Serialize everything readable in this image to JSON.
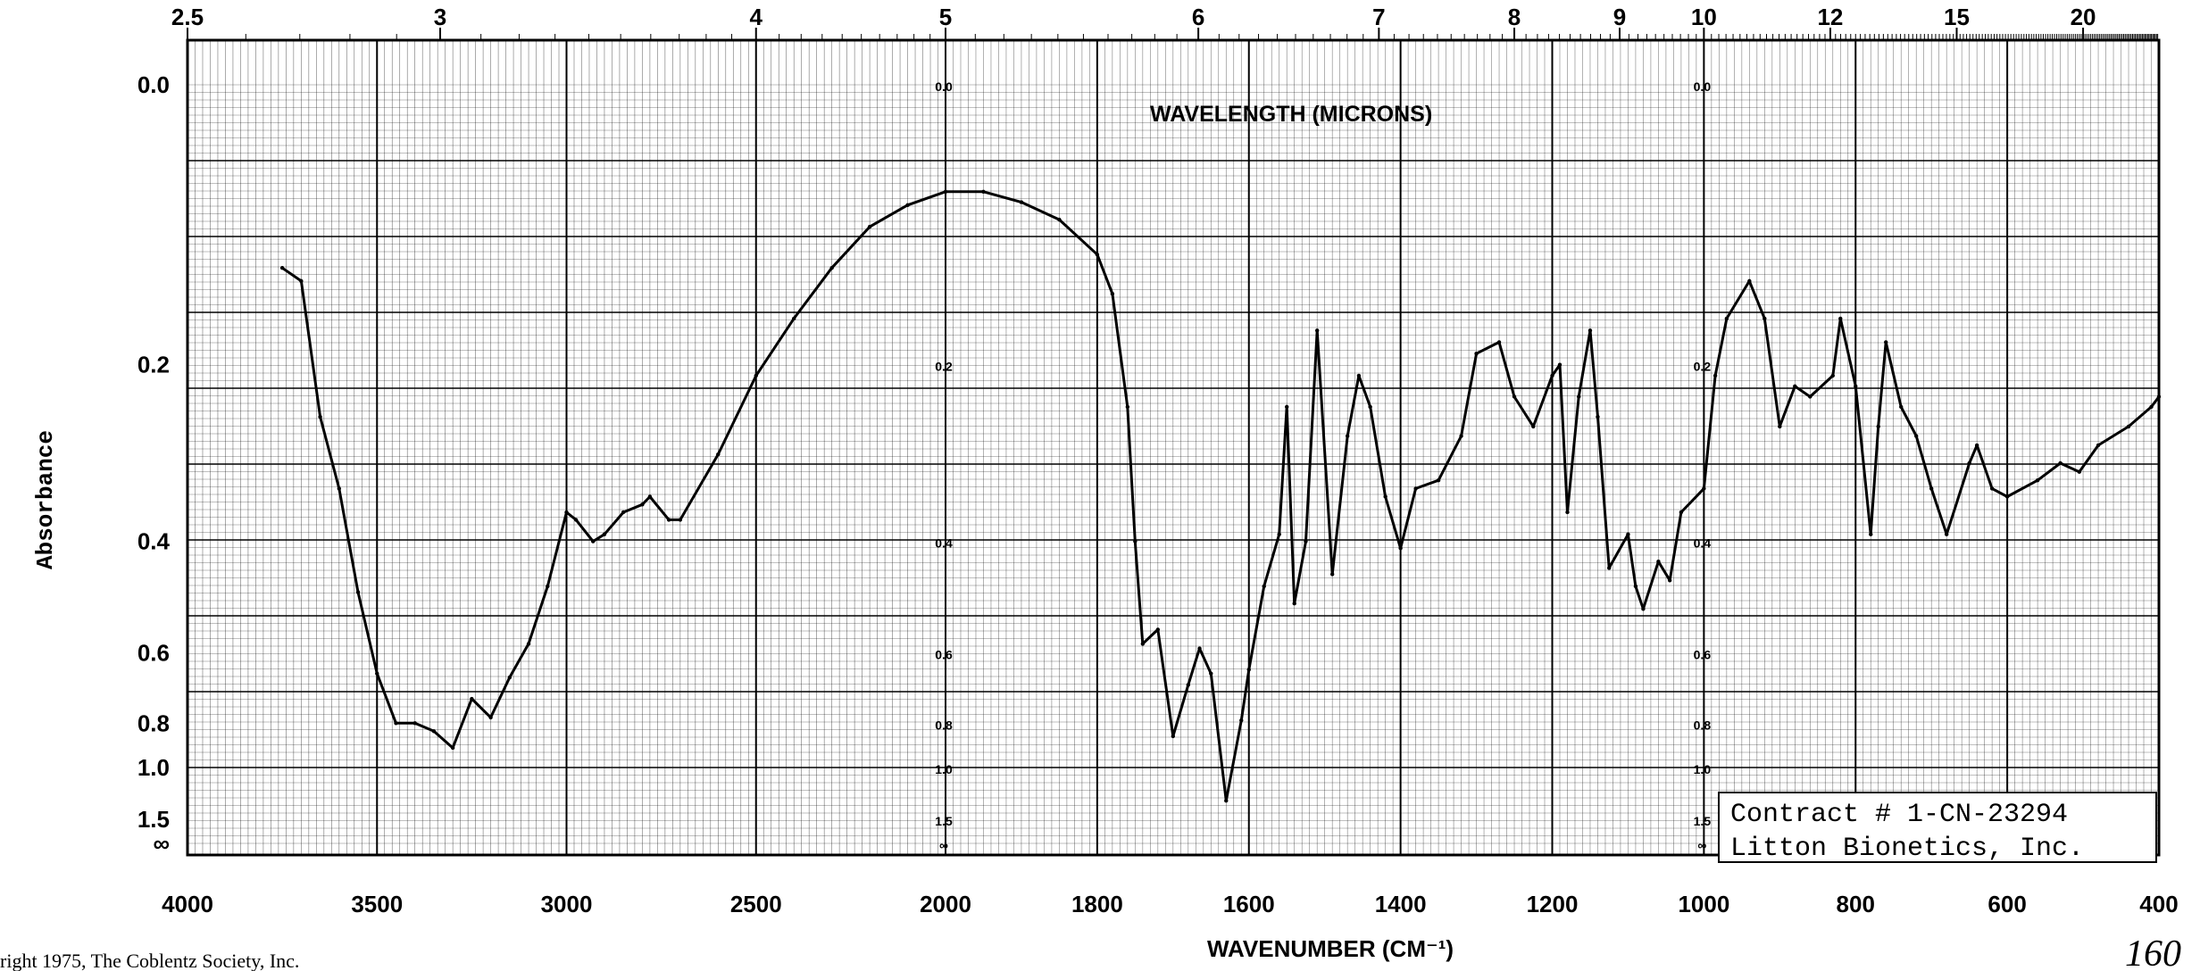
{
  "chart_data": {
    "type": "line",
    "title": "",
    "xlabel": "WAVENUMBER (CM⁻¹)",
    "ylabel": "Absorbance",
    "top_axis_label": "WAVELENGTH (MICRONS)",
    "x_range": [
      4000,
      400
    ],
    "y_range": [
      0.0,
      "∞"
    ],
    "grid": true,
    "x_ticks": [
      "4000",
      "3500",
      "3000",
      "2500",
      "2000",
      "1800",
      "1600",
      "1400",
      "1200",
      "1000",
      "800",
      "600",
      "400"
    ],
    "top_ticks": [
      "2.5",
      "3",
      "4",
      "5",
      "6",
      "7",
      "8",
      "9",
      "10",
      "12",
      "15",
      "20"
    ],
    "y_ticks": [
      "0.0",
      "0.2",
      "0.4",
      "0.6",
      "0.8",
      "1.0",
      "1.5",
      "∞"
    ],
    "inner_scale_marks": [
      "0.0",
      "0.2",
      "0.4",
      "0.6",
      "0.8",
      "1.0",
      "1.5",
      "∞"
    ],
    "series": [
      {
        "points": [
          [
            3750,
            0.12
          ],
          [
            3700,
            0.13
          ],
          [
            3650,
            0.25
          ],
          [
            3600,
            0.33
          ],
          [
            3550,
            0.48
          ],
          [
            3500,
            0.65
          ],
          [
            3450,
            0.8
          ],
          [
            3400,
            0.8
          ],
          [
            3350,
            0.83
          ],
          [
            3300,
            0.9
          ],
          [
            3250,
            0.72
          ],
          [
            3200,
            0.78
          ],
          [
            3150,
            0.66
          ],
          [
            3100,
            0.58
          ],
          [
            3050,
            0.47
          ],
          [
            3000,
            0.36
          ],
          [
            2975,
            0.37
          ],
          [
            2930,
            0.4
          ],
          [
            2900,
            0.39
          ],
          [
            2850,
            0.36
          ],
          [
            2800,
            0.35
          ],
          [
            2780,
            0.34
          ],
          [
            2730,
            0.37
          ],
          [
            2700,
            0.37
          ],
          [
            2600,
            0.29
          ],
          [
            2500,
            0.21
          ],
          [
            2400,
            0.16
          ],
          [
            2300,
            0.12
          ],
          [
            2200,
            0.09
          ],
          [
            2100,
            0.075
          ],
          [
            2000,
            0.066
          ],
          [
            1950,
            0.066
          ],
          [
            1900,
            0.073
          ],
          [
            1850,
            0.085
          ],
          [
            1800,
            0.11
          ],
          [
            1780,
            0.14
          ],
          [
            1760,
            0.24
          ],
          [
            1750,
            0.4
          ],
          [
            1740,
            0.58
          ],
          [
            1720,
            0.55
          ],
          [
            1700,
            0.85
          ],
          [
            1680,
            0.68
          ],
          [
            1665,
            0.59
          ],
          [
            1650,
            0.65
          ],
          [
            1630,
            1.25
          ],
          [
            1610,
            0.79
          ],
          [
            1600,
            0.64
          ],
          [
            1580,
            0.47
          ],
          [
            1560,
            0.39
          ],
          [
            1550,
            0.24
          ],
          [
            1540,
            0.5
          ],
          [
            1525,
            0.4
          ],
          [
            1510,
            0.17
          ],
          [
            1490,
            0.45
          ],
          [
            1470,
            0.27
          ],
          [
            1455,
            0.21
          ],
          [
            1440,
            0.24
          ],
          [
            1420,
            0.34
          ],
          [
            1400,
            0.41
          ],
          [
            1380,
            0.33
          ],
          [
            1350,
            0.32
          ],
          [
            1320,
            0.27
          ],
          [
            1300,
            0.19
          ],
          [
            1270,
            0.18
          ],
          [
            1250,
            0.23
          ],
          [
            1225,
            0.26
          ],
          [
            1200,
            0.21
          ],
          [
            1190,
            0.2
          ],
          [
            1180,
            0.36
          ],
          [
            1165,
            0.23
          ],
          [
            1150,
            0.17
          ],
          [
            1140,
            0.25
          ],
          [
            1125,
            0.44
          ],
          [
            1100,
            0.39
          ],
          [
            1090,
            0.47
          ],
          [
            1080,
            0.51
          ],
          [
            1060,
            0.43
          ],
          [
            1045,
            0.46
          ],
          [
            1030,
            0.36
          ],
          [
            1000,
            0.33
          ],
          [
            985,
            0.21
          ],
          [
            970,
            0.16
          ],
          [
            940,
            0.13
          ],
          [
            920,
            0.16
          ],
          [
            900,
            0.26
          ],
          [
            880,
            0.22
          ],
          [
            860,
            0.23
          ],
          [
            830,
            0.21
          ],
          [
            820,
            0.16
          ],
          [
            800,
            0.22
          ],
          [
            780,
            0.39
          ],
          [
            770,
            0.26
          ],
          [
            760,
            0.18
          ],
          [
            740,
            0.24
          ],
          [
            720,
            0.27
          ],
          [
            700,
            0.33
          ],
          [
            680,
            0.39
          ],
          [
            650,
            0.3
          ],
          [
            640,
            0.28
          ],
          [
            620,
            0.33
          ],
          [
            600,
            0.34
          ],
          [
            560,
            0.32
          ],
          [
            530,
            0.3
          ],
          [
            505,
            0.31
          ],
          [
            480,
            0.28
          ],
          [
            440,
            0.26
          ],
          [
            410,
            0.24
          ],
          [
            400,
            0.23
          ]
        ]
      }
    ]
  },
  "annotations": {
    "contract": "Contract # 1-CN-23294",
    "company": "Litton Bionetics, Inc.",
    "copyright": "right 1975, The Coblentz Society, Inc.",
    "page_number": "160"
  },
  "colors": {
    "ink": "#000000",
    "grid": "#000000",
    "paper": "#ffffff"
  }
}
